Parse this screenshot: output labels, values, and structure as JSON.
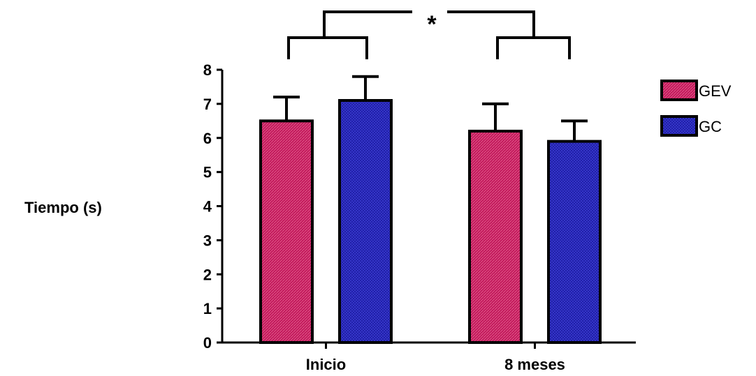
{
  "chart_data": {
    "type": "bar",
    "categories": [
      "Inicio",
      "8 meses"
    ],
    "series": [
      {
        "name": "GEV",
        "values": [
          6.5,
          6.2
        ],
        "errors": [
          0.7,
          0.8
        ],
        "color": "#c2185b"
      },
      {
        "name": "GC",
        "values": [
          7.1,
          5.9
        ],
        "errors": [
          0.7,
          0.6
        ],
        "color": "#1a1aa0"
      }
    ],
    "ylabel": "Tiempo (s)",
    "xlabel": "",
    "ylim": [
      0,
      8
    ],
    "yticks": [
      "0",
      "1",
      "2",
      "3",
      "4",
      "5",
      "6",
      "7",
      "8"
    ],
    "grid": false,
    "legend_position": "top-right",
    "annotation": "*"
  }
}
